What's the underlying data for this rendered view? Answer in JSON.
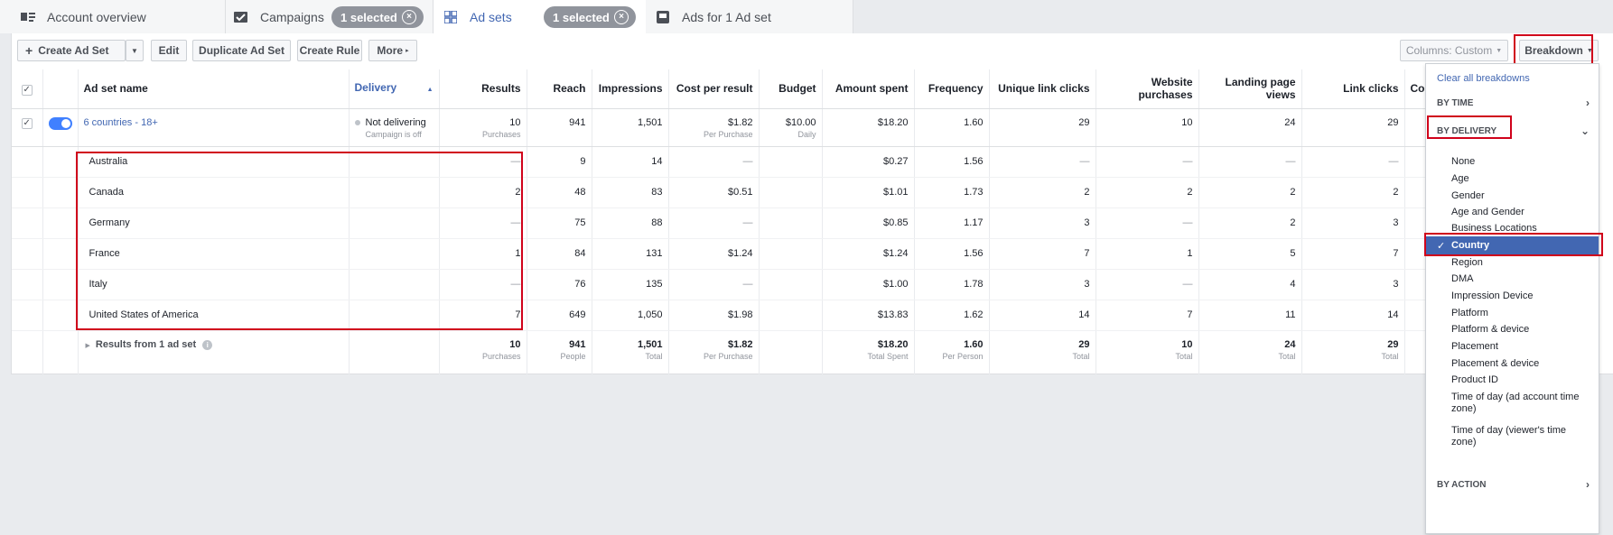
{
  "tabs": {
    "account_overview": "Account overview",
    "campaigns": "Campaigns",
    "campaigns_selected": "1 selected",
    "ad_sets": "Ad sets",
    "ad_sets_selected": "1 selected",
    "ads": "Ads for 1 Ad set"
  },
  "toolbar": {
    "create": "Create Ad Set",
    "edit": "Edit",
    "duplicate": "Duplicate Ad Set",
    "create_rule": "Create Rule",
    "more": "More",
    "columns": "Columns: Custom",
    "breakdown": "Breakdown"
  },
  "columns": {
    "name": "Ad set name",
    "delivery": "Delivery",
    "results": "Results",
    "reach": "Reach",
    "impressions": "Impressions",
    "cost_per_result": "Cost per result",
    "budget": "Budget",
    "amount_spent": "Amount spent",
    "frequency": "Frequency",
    "unique_link_clicks": "Unique link clicks",
    "website_purchases": "Website purchases",
    "landing_page_views": "Landing page views",
    "link_clicks": "Link clicks",
    "cut": "Co"
  },
  "adset": {
    "name": "6 countries - 18+",
    "delivery": "Not delivering",
    "delivery_sub": "Campaign is off",
    "results": "10",
    "results_sub": "Purchases",
    "reach": "941",
    "impressions": "1,501",
    "cost": "$1.82",
    "cost_sub": "Per Purchase",
    "budget": "$10.00",
    "budget_sub": "Daily",
    "spent": "$18.20",
    "frequency": "1.60",
    "unique_clicks": "29",
    "purchases": "10",
    "lpv": "24",
    "link_clicks": "29"
  },
  "rows": [
    {
      "name": "Australia",
      "results": "—",
      "reach": "9",
      "impressions": "14",
      "cost": "—",
      "spent": "$0.27",
      "frequency": "1.56",
      "unique_clicks": "—",
      "purchases": "—",
      "lpv": "—",
      "link_clicks": "—"
    },
    {
      "name": "Canada",
      "results": "2",
      "reach": "48",
      "impressions": "83",
      "cost": "$0.51",
      "spent": "$1.01",
      "frequency": "1.73",
      "unique_clicks": "2",
      "purchases": "2",
      "lpv": "2",
      "link_clicks": "2"
    },
    {
      "name": "Germany",
      "results": "—",
      "reach": "75",
      "impressions": "88",
      "cost": "—",
      "spent": "$0.85",
      "frequency": "1.17",
      "unique_clicks": "3",
      "purchases": "—",
      "lpv": "2",
      "link_clicks": "3"
    },
    {
      "name": "France",
      "results": "1",
      "reach": "84",
      "impressions": "131",
      "cost": "$1.24",
      "spent": "$1.24",
      "frequency": "1.56",
      "unique_clicks": "7",
      "purchases": "1",
      "lpv": "5",
      "link_clicks": "7"
    },
    {
      "name": "Italy",
      "results": "—",
      "reach": "76",
      "impressions": "135",
      "cost": "—",
      "spent": "$1.00",
      "frequency": "1.78",
      "unique_clicks": "3",
      "purchases": "—",
      "lpv": "4",
      "link_clicks": "3"
    },
    {
      "name": "United States of America",
      "results": "7",
      "reach": "649",
      "impressions": "1,050",
      "cost": "$1.98",
      "spent": "$13.83",
      "frequency": "1.62",
      "unique_clicks": "14",
      "purchases": "7",
      "lpv": "11",
      "link_clicks": "14"
    }
  ],
  "total": {
    "label": "Results from 1 ad set",
    "results": "10",
    "results_sub": "Purchases",
    "reach": "941",
    "reach_sub": "People",
    "impressions": "1,501",
    "impressions_sub": "Total",
    "cost": "$1.82",
    "cost_sub": "Per Purchase",
    "spent": "$18.20",
    "spent_sub": "Total Spent",
    "frequency": "1.60",
    "frequency_sub": "Per Person",
    "unique_clicks": "29",
    "unique_clicks_sub": "Total",
    "purchases": "10",
    "purchases_sub": "Total",
    "lpv": "24",
    "lpv_sub": "Total",
    "link_clicks": "29",
    "link_clicks_sub": "Total"
  },
  "breakdown_menu": {
    "clear": "Clear all breakdowns",
    "by_time": "BY TIME",
    "by_delivery": "BY DELIVERY",
    "by_action": "BY ACTION",
    "options": [
      "None",
      "Age",
      "Gender",
      "Age and Gender",
      "Business Locations",
      "Country",
      "Region",
      "DMA",
      "Impression Device",
      "Platform",
      "Platform & device",
      "Placement",
      "Placement & device",
      "Product ID",
      "Time of day (ad account time zone)",
      "Time of day (viewer's time zone)"
    ],
    "selected": "Country"
  },
  "colors": {
    "accent": "#4267b2",
    "highlight": "#d0021b",
    "toggle": "#4080ff"
  }
}
